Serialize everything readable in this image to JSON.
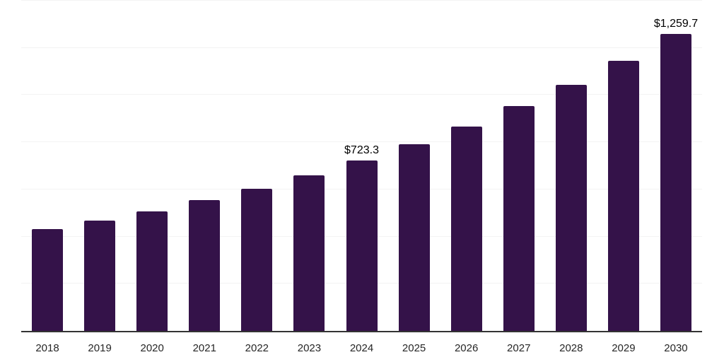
{
  "chart_data": {
    "type": "bar",
    "title": "",
    "xlabel": "",
    "ylabel": "",
    "categories": [
      "2018",
      "2019",
      "2020",
      "2021",
      "2022",
      "2023",
      "2024",
      "2025",
      "2026",
      "2027",
      "2028",
      "2029",
      "2030"
    ],
    "values": [
      432.8,
      466.6,
      507.5,
      555.2,
      603.9,
      660.6,
      723.3,
      791.9,
      867.8,
      952.2,
      1044.8,
      1146.3,
      1259.7
    ],
    "value_labels": {
      "2024": "$723.3",
      "2030": "$1,259.7"
    },
    "ylim": [
      0,
      1400
    ],
    "grid_step": 200,
    "grid": true,
    "legend": false,
    "legend_position": "none",
    "colors": {
      "bar": "#341249",
      "axis_line": "#333333",
      "gridline": "#f3f3f3",
      "value_label_text": "#000000",
      "tick_text": "#262626",
      "background": "#ffffff"
    }
  }
}
